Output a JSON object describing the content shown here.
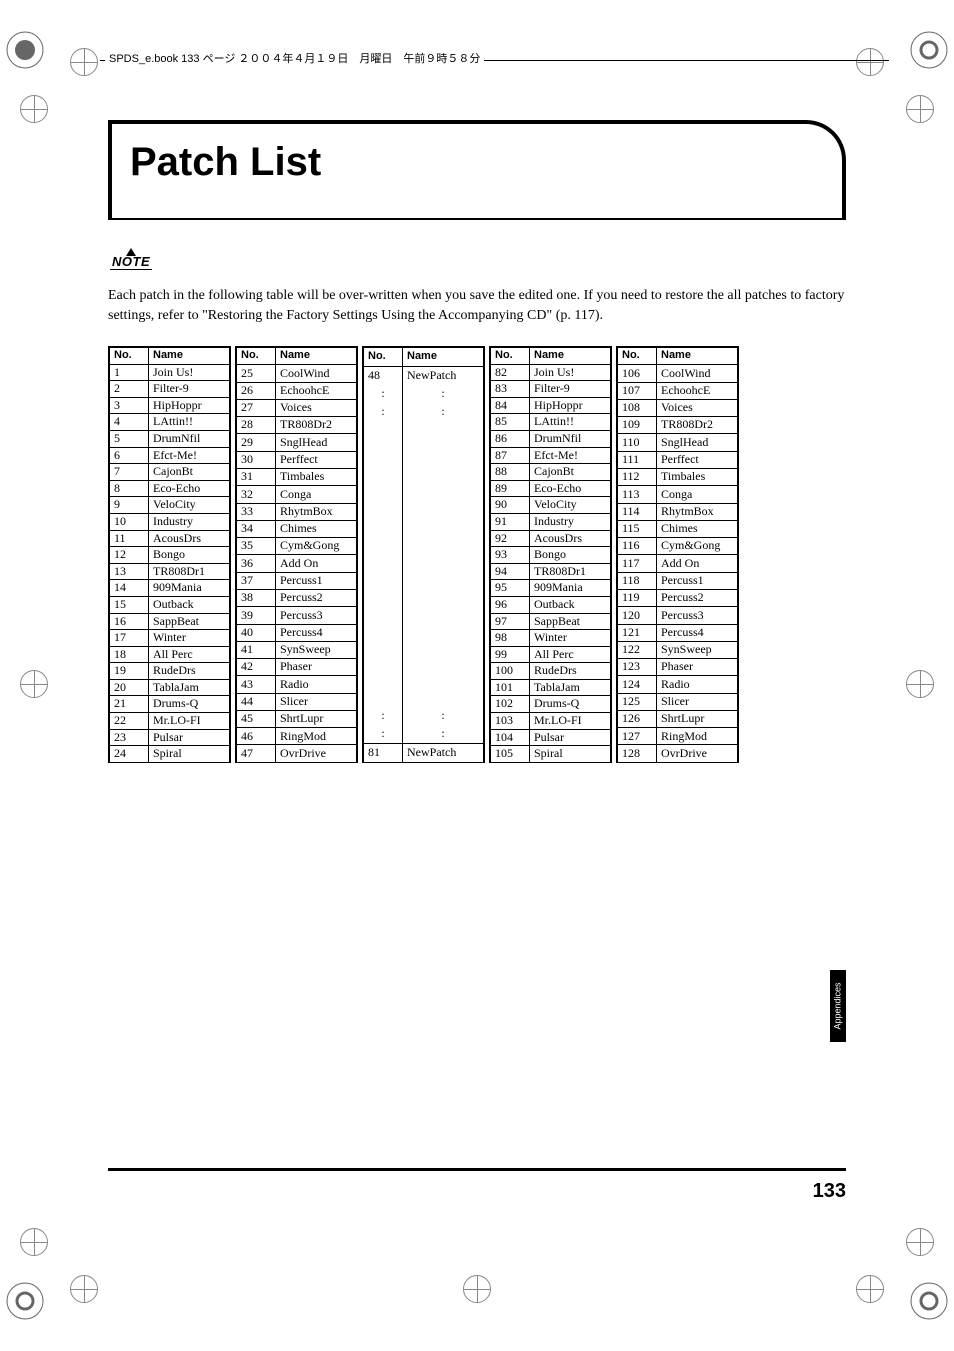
{
  "header": "SPDS_e.book 133 ページ ２００４年４月１９日　月曜日　午前９時５８分",
  "title": "Patch List",
  "noteLabel": "NOTE",
  "noteText": "Each patch in the following table will be over-written when you save the edited one. If you need to restore the all patches to factory settings, refer to \"Restoring the Factory Settings Using the Accompanying CD\" (p. 117).",
  "colNo": "No.",
  "colName": "Name",
  "sideTab": "Appendices",
  "pageNumber": "133",
  "groups": [
    {
      "rows": [
        {
          "no": "1",
          "name": "Join Us!"
        },
        {
          "no": "2",
          "name": "Filter-9"
        },
        {
          "no": "3",
          "name": "HipHoppr"
        },
        {
          "no": "4",
          "name": "LAttin!!"
        },
        {
          "no": "5",
          "name": "DrumNfil"
        },
        {
          "no": "6",
          "name": "Efct-Me!"
        },
        {
          "no": "7",
          "name": "CajonBt"
        },
        {
          "no": "8",
          "name": "Eco-Echo"
        },
        {
          "no": "9",
          "name": "VeloCity"
        },
        {
          "no": "10",
          "name": "Industry"
        },
        {
          "no": "11",
          "name": "AcousDrs"
        },
        {
          "no": "12",
          "name": "Bongo"
        },
        {
          "no": "13",
          "name": "TR808Dr1"
        },
        {
          "no": "14",
          "name": "909Mania"
        },
        {
          "no": "15",
          "name": "Outback"
        },
        {
          "no": "16",
          "name": "SappBeat"
        },
        {
          "no": "17",
          "name": "Winter"
        },
        {
          "no": "18",
          "name": "All Perc"
        },
        {
          "no": "19",
          "name": "RudeDrs"
        },
        {
          "no": "20",
          "name": "TablaJam"
        },
        {
          "no": "21",
          "name": "Drums-Q"
        },
        {
          "no": "22",
          "name": "Mr.LO-FI"
        },
        {
          "no": "23",
          "name": "Pulsar"
        },
        {
          "no": "24",
          "name": "Spiral"
        }
      ]
    },
    {
      "rows": [
        {
          "no": "25",
          "name": "CoolWind"
        },
        {
          "no": "26",
          "name": "EchoohcE"
        },
        {
          "no": "27",
          "name": "Voices"
        },
        {
          "no": "28",
          "name": "TR808Dr2"
        },
        {
          "no": "29",
          "name": "SnglHead"
        },
        {
          "no": "30",
          "name": "Perffect"
        },
        {
          "no": "31",
          "name": "Timbales"
        },
        {
          "no": "32",
          "name": "Conga"
        },
        {
          "no": "33",
          "name": "RhytmBox"
        },
        {
          "no": "34",
          "name": "Chimes"
        },
        {
          "no": "35",
          "name": "Cym&Gong"
        },
        {
          "no": "36",
          "name": "Add On"
        },
        {
          "no": "37",
          "name": "Percuss1"
        },
        {
          "no": "38",
          "name": "Percuss2"
        },
        {
          "no": "39",
          "name": "Percuss3"
        },
        {
          "no": "40",
          "name": "Percuss4"
        },
        {
          "no": "41",
          "name": "SynSweep"
        },
        {
          "no": "42",
          "name": "Phaser"
        },
        {
          "no": "43",
          "name": "Radio"
        },
        {
          "no": "44",
          "name": "Slicer"
        },
        {
          "no": "45",
          "name": "ShrtLupr"
        },
        {
          "no": "46",
          "name": "RingMod"
        },
        {
          "no": "47",
          "name": "OvrDrive"
        }
      ]
    },
    {
      "special": true,
      "top": {
        "no": "48",
        "name": "NewPatch"
      },
      "bottom": {
        "no": "81",
        "name": "NewPatch"
      },
      "fillerRows": 20
    },
    {
      "rows": [
        {
          "no": "82",
          "name": "Join Us!"
        },
        {
          "no": "83",
          "name": "Filter-9"
        },
        {
          "no": "84",
          "name": "HipHoppr"
        },
        {
          "no": "85",
          "name": "LAttin!!"
        },
        {
          "no": "86",
          "name": "DrumNfil"
        },
        {
          "no": "87",
          "name": "Efct-Me!"
        },
        {
          "no": "88",
          "name": "CajonBt"
        },
        {
          "no": "89",
          "name": "Eco-Echo"
        },
        {
          "no": "90",
          "name": "VeloCity"
        },
        {
          "no": "91",
          "name": "Industry"
        },
        {
          "no": "92",
          "name": "AcousDrs"
        },
        {
          "no": "93",
          "name": "Bongo"
        },
        {
          "no": "94",
          "name": "TR808Dr1"
        },
        {
          "no": "95",
          "name": "909Mania"
        },
        {
          "no": "96",
          "name": "Outback"
        },
        {
          "no": "97",
          "name": "SappBeat"
        },
        {
          "no": "98",
          "name": "Winter"
        },
        {
          "no": "99",
          "name": "All Perc"
        },
        {
          "no": "100",
          "name": "RudeDrs"
        },
        {
          "no": "101",
          "name": "TablaJam"
        },
        {
          "no": "102",
          "name": "Drums-Q"
        },
        {
          "no": "103",
          "name": "Mr.LO-FI"
        },
        {
          "no": "104",
          "name": "Pulsar"
        },
        {
          "no": "105",
          "name": "Spiral"
        }
      ]
    },
    {
      "rows": [
        {
          "no": "106",
          "name": "CoolWind"
        },
        {
          "no": "107",
          "name": "EchoohcE"
        },
        {
          "no": "108",
          "name": "Voices"
        },
        {
          "no": "109",
          "name": "TR808Dr2"
        },
        {
          "no": "110",
          "name": "SnglHead"
        },
        {
          "no": "111",
          "name": "Perffect"
        },
        {
          "no": "112",
          "name": "Timbales"
        },
        {
          "no": "113",
          "name": "Conga"
        },
        {
          "no": "114",
          "name": "RhytmBox"
        },
        {
          "no": "115",
          "name": "Chimes"
        },
        {
          "no": "116",
          "name": "Cym&Gong"
        },
        {
          "no": "117",
          "name": "Add On"
        },
        {
          "no": "118",
          "name": "Percuss1"
        },
        {
          "no": "119",
          "name": "Percuss2"
        },
        {
          "no": "120",
          "name": "Percuss3"
        },
        {
          "no": "121",
          "name": "Percuss4"
        },
        {
          "no": "122",
          "name": "SynSweep"
        },
        {
          "no": "123",
          "name": "Phaser"
        },
        {
          "no": "124",
          "name": "Radio"
        },
        {
          "no": "125",
          "name": "Slicer"
        },
        {
          "no": "126",
          "name": "ShrtLupr"
        },
        {
          "no": "127",
          "name": "RingMod"
        },
        {
          "no": "128",
          "name": "OvrDrive"
        }
      ]
    }
  ]
}
